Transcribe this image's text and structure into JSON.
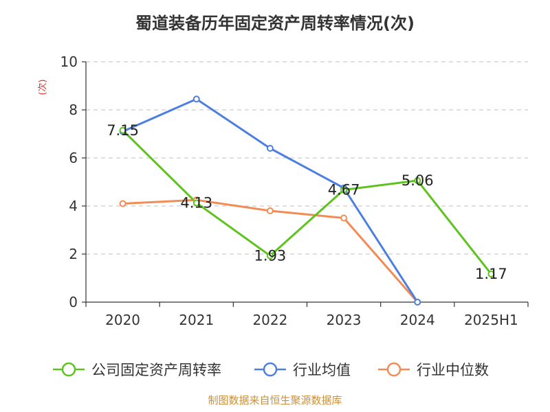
{
  "title": "蜀道装备历年固定资产周转率情况(次)",
  "source": "制图数据来自恒生聚源数据库",
  "chart_data": {
    "type": "line",
    "y_unit": "(次)",
    "categories": [
      "2020",
      "2021",
      "2022",
      "2023",
      "2024",
      "2025H1"
    ],
    "ylim": [
      0,
      10
    ],
    "yticks": [
      0,
      2,
      4,
      6,
      8,
      10
    ],
    "grid": true,
    "legend_position": "bottom",
    "series": [
      {
        "name": "公司固定资产周转率",
        "color": "#5ec21f",
        "values": [
          7.15,
          4.13,
          1.93,
          4.67,
          5.06,
          1.17
        ],
        "labels": [
          "7.15",
          "4.13",
          "1.93",
          "4.67",
          "5.06",
          "1.17"
        ]
      },
      {
        "name": "行业均值",
        "color": "#4d7fe0",
        "values": [
          7.1,
          8.45,
          6.4,
          4.75,
          0,
          null
        ]
      },
      {
        "name": "行业中位数",
        "color": "#f28b54",
        "values": [
          4.1,
          4.25,
          3.8,
          3.5,
          0,
          null
        ]
      }
    ]
  }
}
